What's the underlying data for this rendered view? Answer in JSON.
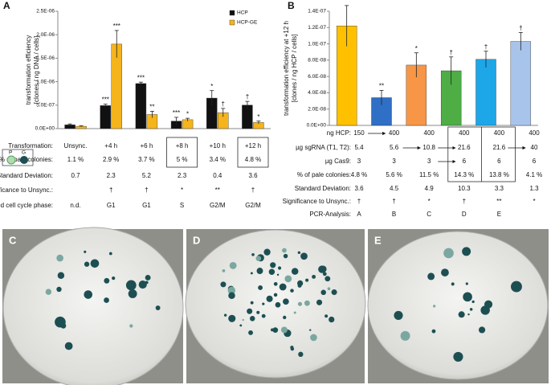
{
  "chart_data": [
    {
      "type": "bar",
      "panel": "A",
      "ylabel": [
        "transformation efficiency",
        "[clones / ng DNA / cells]"
      ],
      "categories": [
        "Unsync.",
        "+4 h",
        "+6 h",
        "+8 h",
        "+10 h",
        "+12 h"
      ],
      "series": [
        {
          "name": "HCP",
          "color": "#111111",
          "values": [
            8e-08,
            4.9e-07,
            9.6e-07,
            1.6e-07,
            6.5e-07,
            5e-07
          ],
          "errors": [
            2e-08,
            3e-08,
            3e-08,
            8e-08,
            1.6e-07,
            8e-08
          ],
          "annotations": [
            null,
            "***",
            "***",
            "***",
            "*",
            "†"
          ]
        },
        {
          "name": "HCP-GE",
          "color": "#f5b41c",
          "values": [
            5e-08,
            1.8e-06,
            3e-07,
            1.9e-07,
            3.4e-07,
            1.3e-07
          ],
          "errors": [
            1e-08,
            2.9e-07,
            7e-08,
            3e-08,
            9e-08,
            3e-08
          ],
          "annotations": [
            null,
            "***",
            "**",
            "*",
            "†",
            "*"
          ]
        }
      ],
      "ylim": [
        0,
        2.5e-06
      ],
      "yticks": [
        {
          "value": 0,
          "label": "0.0E+00"
        },
        {
          "value": 5e-07,
          "label": "5.0E-07"
        },
        {
          "value": 1e-06,
          "label": "1.0E-06"
        },
        {
          "value": 1.5e-06,
          "label": "1.5E-06"
        },
        {
          "value": 2e-06,
          "label": "2.0E-06"
        },
        {
          "value": 2.5e-06,
          "label": "2.5E-06"
        }
      ],
      "legend": "upper right",
      "legend_icon": [
        "P",
        "G"
      ],
      "category_row_label": "Transformation:",
      "table": {
        "rows": [
          {
            "label": "% of pale colonies:",
            "cells": [
              "1.1 %",
              "2.9 %",
              "3.7 %",
              "5 %",
              "3.4 %",
              "4.8 %"
            ]
          },
          {
            "label": "Standard Deviation:",
            "cells": [
              0.7,
              2.3,
              5.2,
              2.3,
              0.4,
              3.6
            ]
          },
          {
            "label": "Significance to Unsync.:",
            "cells": [
              null,
              "†",
              "†",
              "*",
              "**",
              "†"
            ]
          },
          {
            "label": "Assumed cell cycle phase:",
            "cells": [
              "n.d.",
              "G1",
              "G1",
              "S",
              "G2/M",
              "G2/M"
            ]
          }
        ]
      }
    },
    {
      "type": "bar",
      "panel": "B",
      "ylabel": [
        "transformation efficiency at +12 h",
        "[clones / ng HCP / cells]"
      ],
      "values": [
        1.22e-07,
        3.4e-08,
        7.4e-08,
        6.7e-08,
        8.1e-08,
        1.03e-07
      ],
      "errors": [
        2.5e-08,
        9e-09,
        1.5e-08,
        1.7e-08,
        1e-08,
        1.1e-08
      ],
      "annotations": [
        null,
        "**",
        "*",
        "†",
        "†",
        "†"
      ],
      "colors": [
        "#ffc000",
        "#2f6fc6",
        "#f79646",
        "#4ead45",
        "#1ea7e8",
        "#a9c4eb"
      ],
      "ylim": [
        0,
        1.4e-07
      ],
      "yticks": [
        {
          "value": 0,
          "label": "0.0E+00"
        },
        {
          "value": 2e-08,
          "label": "2.0E-08"
        },
        {
          "value": 4e-08,
          "label": "4.0E-08"
        },
        {
          "value": 6e-08,
          "label": "6.0E-08"
        },
        {
          "value": 8e-08,
          "label": "8.0E-08"
        },
        {
          "value": 1e-07,
          "label": "1.0E-07"
        },
        {
          "value": 1.2e-07,
          "label": "1.2E-07"
        },
        {
          "value": 1.4e-07,
          "label": "1.4E-07"
        }
      ],
      "table": {
        "rows": [
          {
            "label": "ng HCP:",
            "cells": [
              150,
              400,
              400,
              400,
              400,
              400
            ]
          },
          {
            "label": "µg sgRNA (T1, T2):",
            "cells": [
              5.4,
              5.6,
              10.8,
              21.6,
              21.6,
              40
            ]
          },
          {
            "label": "µg Cas9:",
            "cells": [
              3,
              3,
              3,
              6,
              6,
              6
            ]
          },
          {
            "label": "% of pale colonies:",
            "cells": [
              "4.8 %",
              "5.6 %",
              "11.5 %",
              "14.3 %",
              "13.8 %",
              "4.1 %"
            ]
          },
          {
            "label": "Standard Deviation:",
            "cells": [
              3.6,
              4.5,
              4.9,
              10.3,
              3.3,
              1.3
            ]
          },
          {
            "label": "Significance to Unsync.:",
            "cells": [
              "†",
              "†",
              "*",
              "†",
              "**",
              "*"
            ]
          },
          {
            "label": "PCR-Analysis:",
            "cells": [
              "A",
              "B",
              "C",
              "D",
              "E",
              null
            ]
          }
        ]
      }
    }
  ],
  "photos": [
    "C",
    "D",
    "E"
  ]
}
